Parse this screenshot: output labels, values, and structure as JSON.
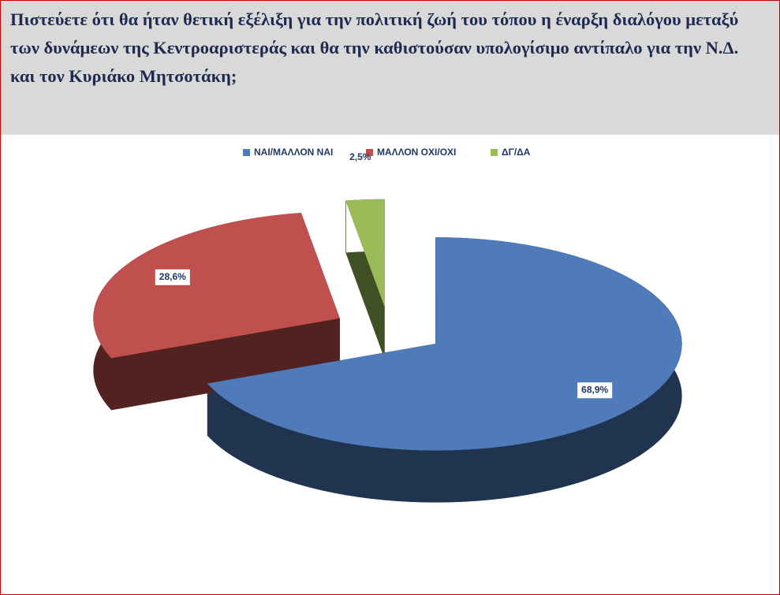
{
  "chart_data": {
    "type": "pie3d",
    "title": "Πιστεύετε ότι θα ήταν θετική εξέλιξη για την πολιτική ζωή του τόπου η έναρξη διαλόγου μεταξύ των δυνάμεων της Κεντροαριστεράς και θα την καθιστούσαν υπολογίσιμο αντίπαλο για την Ν.Δ. και τον Κυριάκο Μητσοτάκη;",
    "categories": [
      "ΝΑΙ/ΜΑΛΛΟΝ ΝΑΙ",
      "ΜΑΛΛΟΝ ΟΧΙ/ΟΧΙ",
      "ΔΓ/ΔΑ"
    ],
    "values": [
      68.9,
      28.6,
      2.5
    ],
    "value_labels": [
      "68,9%",
      "28,6%",
      "2,5%"
    ],
    "colors": [
      "#4f7bbb",
      "#c0504d",
      "#9bbb59"
    ],
    "legend": "top"
  }
}
